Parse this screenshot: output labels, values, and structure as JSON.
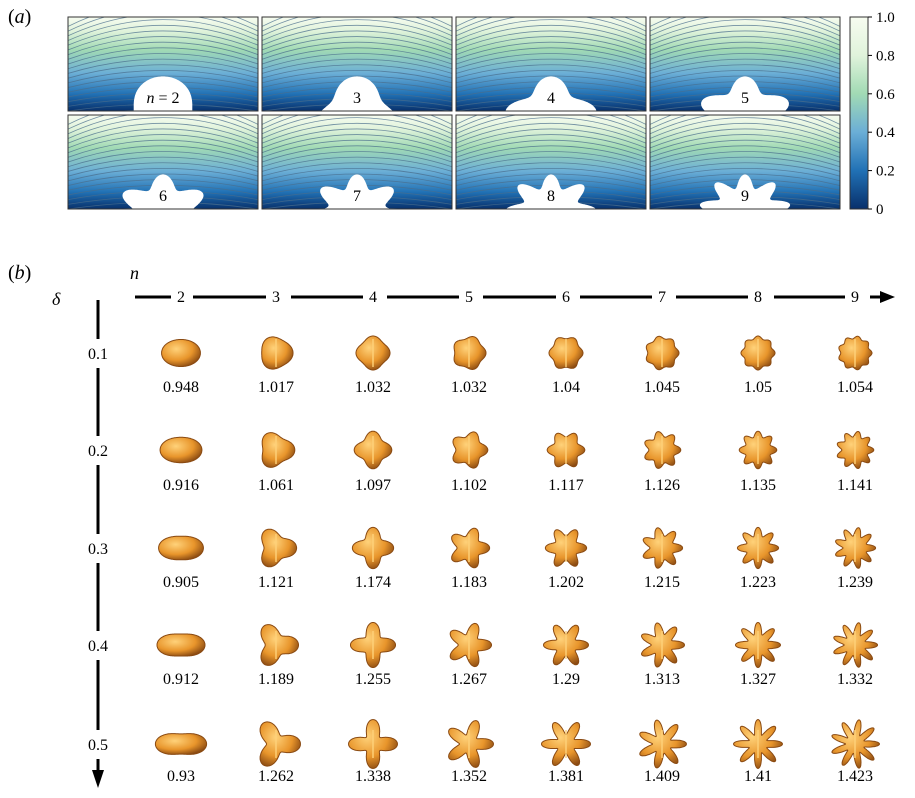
{
  "panel_a": {
    "label": "a",
    "n_prefix": "n = ",
    "cells": [
      "2",
      "3",
      "4",
      "5",
      "6",
      "7",
      "8",
      "9"
    ],
    "colorbar": {
      "ticks": [
        "1.0",
        "0.8",
        "0.6",
        "0.4",
        "0.2",
        "0"
      ],
      "colors": [
        "#08306b",
        "#2171b5",
        "#6baed6",
        "#a1dab4",
        "#e0f3db",
        "#f7fcf0"
      ]
    }
  },
  "panel_b": {
    "label": "b",
    "axis_n": "n",
    "axis_delta": "δ",
    "n_values": [
      "2",
      "3",
      "4",
      "5",
      "6",
      "7",
      "8",
      "9"
    ],
    "deltas": [
      {
        "label": "0.1",
        "values": [
          "0.948",
          "1.017",
          "1.032",
          "1.032",
          "1.04",
          "1.045",
          "1.05",
          "1.054"
        ]
      },
      {
        "label": "0.2",
        "values": [
          "0.916",
          "1.061",
          "1.097",
          "1.102",
          "1.117",
          "1.126",
          "1.135",
          "1.141"
        ]
      },
      {
        "label": "0.3",
        "values": [
          "0.905",
          "1.121",
          "1.174",
          "1.183",
          "1.202",
          "1.215",
          "1.223",
          "1.239"
        ]
      },
      {
        "label": "0.4",
        "values": [
          "0.912",
          "1.189",
          "1.255",
          "1.267",
          "1.29",
          "1.313",
          "1.327",
          "1.332"
        ]
      },
      {
        "label": "0.5",
        "values": [
          "0.93",
          "1.262",
          "1.338",
          "1.352",
          "1.381",
          "1.409",
          "1.41",
          "1.423"
        ]
      }
    ],
    "shape_colors": {
      "light": "#ffd27a",
      "mid": "#e8952b",
      "dark": "#8a4a12"
    }
  }
}
